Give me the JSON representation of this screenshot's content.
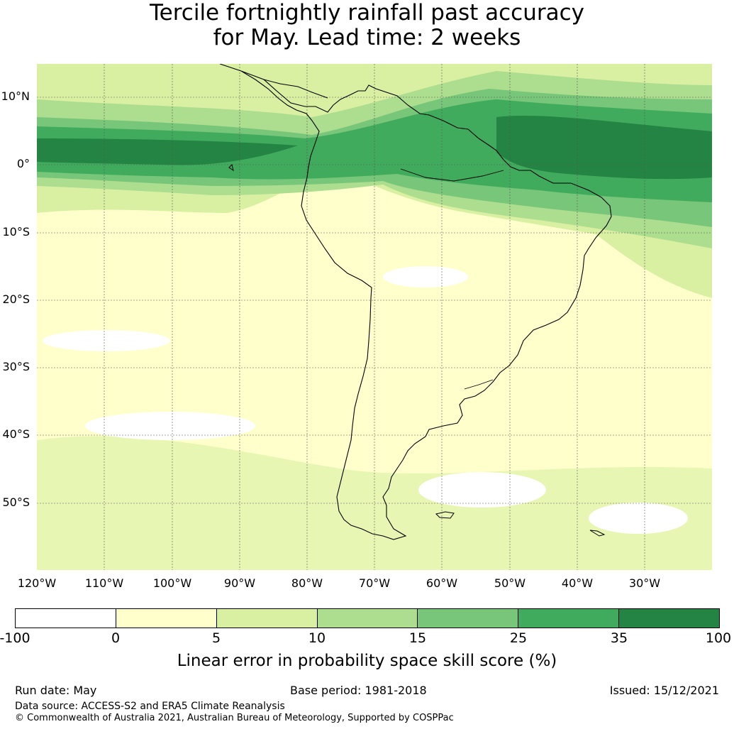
{
  "title": {
    "line1": "Tercile fortnightly rainfall past accuracy",
    "line2": "for May. Lead time: 2 weeks"
  },
  "map": {
    "region": "South America",
    "lat_labels": [
      "10°N",
      "0°",
      "10°S",
      "20°S",
      "30°S",
      "40°S",
      "50°S"
    ],
    "lon_labels": [
      "120°W",
      "110°W",
      "100°W",
      "90°W",
      "80°W",
      "70°W",
      "60°W",
      "50°W",
      "40°W",
      "30°W"
    ],
    "gridlines": "dashed",
    "lat_range": [
      -60,
      15
    ],
    "lon_range": [
      -120,
      -20
    ]
  },
  "colorbar": {
    "ticks": [
      "-100",
      "0",
      "5",
      "10",
      "15",
      "25",
      "35",
      "100"
    ],
    "colors": [
      "#ffffff",
      "#ffffcc",
      "#d9f0a3",
      "#addd8e",
      "#78c679",
      "#41ab5d",
      "#238443"
    ],
    "label": "Linear error in probability space skill score (%)"
  },
  "footer": {
    "run_date": "Run date: May",
    "base_period": "Base period: 1981-2018",
    "issued": "Issued: 15/12/2021",
    "data_source": "Data source: ACCESS-S2 and ERA5 Climate Reanalysis",
    "copyright": "© Commonwealth of Australia 2021, Australian Bureau of Meteorology, Supported by COSPPac"
  }
}
